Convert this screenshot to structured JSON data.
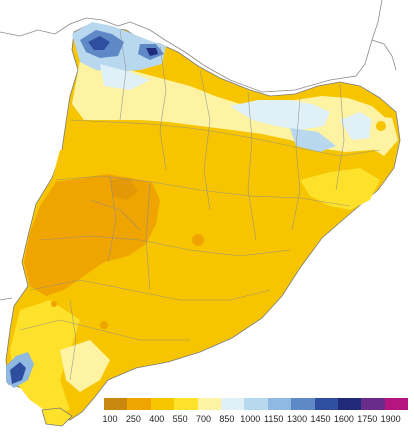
{
  "legend": {
    "ticks": [
      "100",
      "250",
      "400",
      "550",
      "700",
      "850",
      "1000",
      "1150",
      "1300",
      "1450",
      "1600",
      "1750",
      "1900"
    ],
    "colors": [
      "#c9870f",
      "#f0a400",
      "#f7c500",
      "#fde12a",
      "#fdf3a3",
      "#dff0f7",
      "#b7d8ee",
      "#8fb9e0",
      "#5f88c7",
      "#2f4e9f",
      "#1f2b7a",
      "#6a2c8a",
      "#b5157e"
    ]
  },
  "map": {
    "region": "Catalonia",
    "variable_colors": {
      "driest": "#f0a400",
      "typical": "#fde12a",
      "wet_mountain": "#2f4e9f"
    }
  }
}
